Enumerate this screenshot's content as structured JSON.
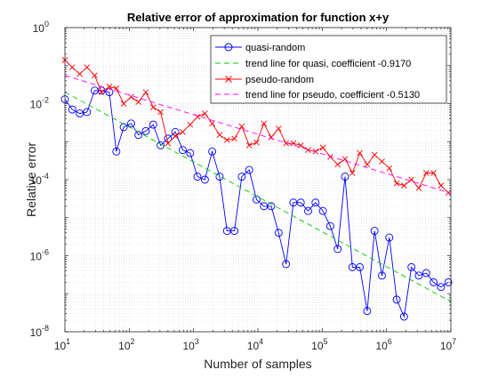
{
  "colors": {
    "quasi": "#0000ff",
    "quasi_trend": "#00cc00",
    "pseudo": "#ff0000",
    "pseudo_trend": "#ff00ff",
    "axis": "#262626",
    "grid": "#dcdcdc"
  },
  "chart_data": {
    "type": "line",
    "title": "Relative error of approximation for function x+y",
    "xlabel": "Number of samples",
    "ylabel": "Relative error",
    "xscale": "log",
    "yscale": "log",
    "xlim": [
      10,
      10000000
    ],
    "ylim": [
      1e-08,
      1
    ],
    "grid": "major and minor, dotted",
    "legend_position": "top-right",
    "x_tick_labels": [
      {
        "base": "10",
        "exp": "1"
      },
      {
        "base": "10",
        "exp": "2"
      },
      {
        "base": "10",
        "exp": "3"
      },
      {
        "base": "10",
        "exp": "4"
      },
      {
        "base": "10",
        "exp": "5"
      },
      {
        "base": "10",
        "exp": "6"
      },
      {
        "base": "10",
        "exp": "7"
      }
    ],
    "y_tick_labels": [
      {
        "base": "10",
        "exp": "-8"
      },
      {
        "base": "10",
        "exp": "-6"
      },
      {
        "base": "10",
        "exp": "-4"
      },
      {
        "base": "10",
        "exp": "-2"
      },
      {
        "base": "10",
        "exp": "0"
      }
    ],
    "x": [
      10,
      13,
      17,
      22,
      29,
      37,
      49,
      63,
      82,
      107,
      139,
      181,
      236,
      307,
      400,
      521,
      679,
      884,
      1150,
      1500,
      1950,
      2540,
      3310,
      4310,
      5620,
      7310,
      9530,
      12400,
      16100,
      21000,
      27400,
      35600,
      46400,
      60400,
      78700,
      102500,
      133500,
      173800,
      226300,
      294700,
      383800,
      499800,
      650900,
      847500,
      1104000,
      1437000,
      1872000,
      2438000,
      3175000,
      4135000,
      5385000,
      7012000,
      9132000
    ],
    "series": [
      {
        "name": "quasi-random",
        "values": [
          0.013,
          0.007,
          0.0055,
          0.006,
          0.022,
          0.022,
          0.02,
          0.00055,
          0.0024,
          0.003,
          0.0015,
          0.0019,
          0.0028,
          0.0008,
          0.0012,
          0.0018,
          0.0006,
          0.0005,
          0.00012,
          0.0001,
          0.00055,
          0.00012,
          4.5e-06,
          4.5e-06,
          0.00012,
          0.00018,
          3e-05,
          2e-05,
          2e-05,
          4e-06,
          6e-07,
          2.5e-05,
          2.5e-05,
          1.5e-05,
          2.5e-05,
          1.5e-05,
          6e-06,
          1.5e-06,
          0.00012,
          5e-07,
          5e-07,
          3.5e-08,
          4.5e-06,
          3e-07,
          3e-06,
          7e-08,
          2.5e-08,
          5e-07,
          3e-07,
          3.5e-07,
          2e-07,
          1.5e-07,
          2e-07
        ]
      },
      {
        "name": "trend line for quasi, coefficient -0.9170",
        "x": [
          10,
          10000000
        ],
        "values": [
          0.02,
          6.2e-08
        ]
      },
      {
        "name": "pseudo-random",
        "values": [
          0.14,
          0.09,
          0.06,
          0.09,
          0.055,
          0.02,
          0.028,
          0.025,
          0.01,
          0.015,
          0.011,
          0.02,
          0.008,
          0.006,
          0.0009,
          0.0014,
          0.0018,
          0.0028,
          0.0045,
          0.0055,
          0.003,
          0.0015,
          0.0011,
          0.0012,
          0.0025,
          0.0008,
          0.00095,
          0.003,
          0.0013,
          0.0022,
          0.0009,
          0.0009,
          0.0008,
          0.0006,
          0.00055,
          0.0007,
          0.0004,
          0.00025,
          0.00035,
          0.00015,
          0.0005,
          0.00025,
          0.00045,
          0.0003,
          0.0002,
          8e-05,
          7e-05,
          0.0001,
          6e-05,
          0.00015,
          0.00015,
          7e-05,
          4.5e-05
        ]
      },
      {
        "name": "trend line for pseudo, coefficient -0.5130",
        "x": [
          10,
          10000000
        ],
        "values": [
          0.055,
          4.4e-05
        ]
      }
    ]
  }
}
